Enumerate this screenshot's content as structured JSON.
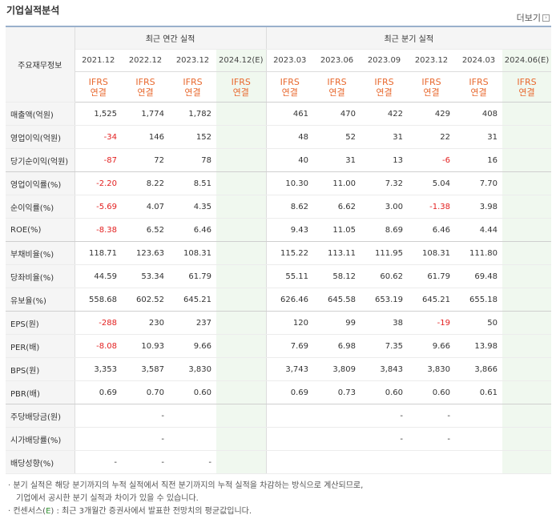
{
  "title": "기업실적분석",
  "more_label": "더보기",
  "header": {
    "row_label": "주요재무정보",
    "annual_label": "최근 연간 실적",
    "quarterly_label": "최근 분기 실적",
    "annual_periods": [
      "2021.12",
      "2022.12",
      "2023.12",
      "2024.12(E)"
    ],
    "quarterly_periods": [
      "2023.03",
      "2023.06",
      "2023.09",
      "2023.12",
      "2024.03",
      "2024.06(E)"
    ],
    "ifrs_line1": "IFRS",
    "ifrs_line2": "연결"
  },
  "rows": [
    {
      "label": "매출액(억원)",
      "values": [
        "1,525",
        "1,774",
        "1,782",
        "",
        "461",
        "470",
        "422",
        "429",
        "408",
        ""
      ]
    },
    {
      "label": "영업이익(억원)",
      "values": [
        "-34",
        "146",
        "152",
        "",
        "48",
        "52",
        "31",
        "22",
        "31",
        ""
      ]
    },
    {
      "label": "당기순이익(억원)",
      "values": [
        "-87",
        "72",
        "78",
        "",
        "40",
        "31",
        "13",
        "-6",
        "16",
        ""
      ]
    },
    {
      "label": "영업이익률(%)",
      "values": [
        "-2.20",
        "8.22",
        "8.51",
        "",
        "10.30",
        "11.00",
        "7.32",
        "5.04",
        "7.70",
        ""
      ]
    },
    {
      "label": "순이익률(%)",
      "values": [
        "-5.69",
        "4.07",
        "4.35",
        "",
        "8.62",
        "6.62",
        "3.00",
        "-1.38",
        "3.98",
        ""
      ]
    },
    {
      "label": "ROE(%)",
      "values": [
        "-8.38",
        "6.52",
        "6.46",
        "",
        "9.43",
        "11.05",
        "8.69",
        "6.46",
        "4.44",
        ""
      ]
    },
    {
      "label": "부채비율(%)",
      "values": [
        "118.71",
        "123.63",
        "108.31",
        "",
        "115.22",
        "113.11",
        "111.95",
        "108.31",
        "111.80",
        ""
      ]
    },
    {
      "label": "당좌비율(%)",
      "values": [
        "44.59",
        "53.34",
        "61.79",
        "",
        "55.11",
        "58.12",
        "60.62",
        "61.79",
        "69.48",
        ""
      ]
    },
    {
      "label": "유보율(%)",
      "values": [
        "558.68",
        "602.52",
        "645.21",
        "",
        "626.46",
        "645.58",
        "653.19",
        "645.21",
        "655.18",
        ""
      ]
    },
    {
      "label": "EPS(원)",
      "values": [
        "-288",
        "230",
        "237",
        "",
        "120",
        "99",
        "38",
        "-19",
        "50",
        ""
      ]
    },
    {
      "label": "PER(배)",
      "values": [
        "-8.08",
        "10.93",
        "9.66",
        "",
        "7.69",
        "6.98",
        "7.35",
        "9.66",
        "13.98",
        ""
      ]
    },
    {
      "label": "BPS(원)",
      "values": [
        "3,353",
        "3,587",
        "3,830",
        "",
        "3,743",
        "3,809",
        "3,843",
        "3,830",
        "3,866",
        ""
      ]
    },
    {
      "label": "PBR(배)",
      "values": [
        "0.69",
        "0.70",
        "0.60",
        "",
        "0.69",
        "0.73",
        "0.60",
        "0.60",
        "0.61",
        ""
      ]
    },
    {
      "label": "주당배당금(원)",
      "values": [
        "",
        "-",
        "",
        "",
        "",
        "",
        "-",
        "-",
        "",
        ""
      ]
    },
    {
      "label": "시가배당률(%)",
      "values": [
        "",
        "-",
        "",
        "",
        "",
        "",
        "-",
        "-",
        "",
        ""
      ]
    },
    {
      "label": "배당성향(%)",
      "values": [
        "-",
        "-",
        "-",
        "",
        "",
        "",
        "",
        "",
        "",
        ""
      ]
    }
  ],
  "notes": {
    "line1": "· 분기 실적은 해당 분기까지의 누적 실적에서 직전 분기까지의 누적 실적을 차감하는 방식으로 계산되므로,",
    "line2": "기업에서 공시한 분기 실적과 차이가 있을 수 있습니다.",
    "line3_prefix": "· 컨센서스(",
    "line3_e": "E",
    "line3_suffix": ") : 최근 3개월간 증권사에서 발표한 전망치의 평균값입니다."
  },
  "colors": {
    "negative": "#e31f1f",
    "ifrs": "#e8692f",
    "estimate_bg": "#f0f8ef",
    "estimate_tag": "#2f8f2f"
  }
}
